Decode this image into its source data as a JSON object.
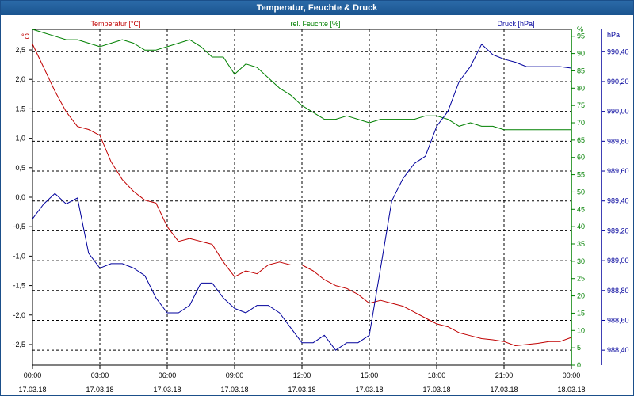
{
  "window": {
    "title": "Temperatur, Feuchte & Druck"
  },
  "colors": {
    "temperature": "#c00000",
    "humidity": "#008000",
    "pressure": "#00009c",
    "grid": "#000000"
  },
  "chart_data": {
    "type": "line",
    "grid": true,
    "x_ticks": [
      {
        "time": "00:00",
        "date": "17.03.18"
      },
      {
        "time": "03:00",
        "date": "17.03.18"
      },
      {
        "time": "06:00",
        "date": "17.03.18"
      },
      {
        "time": "09:00",
        "date": "17.03.18"
      },
      {
        "time": "12:00",
        "date": "17.03.18"
      },
      {
        "time": "15:00",
        "date": "17.03.18"
      },
      {
        "time": "18:00",
        "date": "17.03.18"
      },
      {
        "time": "21:00",
        "date": "17.03.18"
      },
      {
        "time": "00:00",
        "date": "18.03.18"
      }
    ],
    "x_unit": "hours",
    "x_range": [
      0,
      24
    ],
    "axes": {
      "temperature": {
        "label": "Temperatur [°C]",
        "unit": "°C",
        "range": [
          -2.85,
          2.85
        ],
        "ticks": [
          "2,5",
          "2,0",
          "1,5",
          "1,0",
          "0,5",
          "0,0",
          "-0,5",
          "-1,0",
          "-1,5",
          "-2,0",
          "-2,5"
        ],
        "tick_values": [
          2.5,
          2.0,
          1.5,
          1.0,
          0.5,
          0.0,
          -0.5,
          -1.0,
          -1.5,
          -2.0,
          -2.5
        ]
      },
      "humidity": {
        "label": "rel. Feuchte [%]",
        "unit": "%",
        "range": [
          0,
          97
        ],
        "ticks": [
          "95",
          "90",
          "85",
          "80",
          "75",
          "70",
          "65",
          "60",
          "55",
          "50",
          "45",
          "40",
          "35",
          "30",
          "25",
          "20",
          "15",
          "10",
          "5",
          "0"
        ],
        "tick_values": [
          95,
          90,
          85,
          80,
          75,
          70,
          65,
          60,
          55,
          50,
          45,
          40,
          35,
          30,
          25,
          20,
          15,
          10,
          5,
          0
        ]
      },
      "pressure": {
        "label": "Druck [hPa]",
        "unit": "hPa",
        "range": [
          988.3,
          990.55
        ],
        "ticks": [
          "990,40",
          "990,20",
          "990,00",
          "989,80",
          "989,60",
          "989,40",
          "989,20",
          "989,00",
          "988,80",
          "988,60",
          "988,40"
        ],
        "tick_values": [
          990.4,
          990.2,
          990.0,
          989.8,
          989.6,
          989.4,
          989.2,
          989.0,
          988.8,
          988.6,
          988.4
        ]
      }
    },
    "series": [
      {
        "name": "Temperatur [°C]",
        "axis": "temperature",
        "x": [
          0,
          0.5,
          1,
          1.5,
          2,
          2.5,
          3,
          3.5,
          4,
          4.5,
          5,
          5.5,
          6,
          6.5,
          7,
          7.5,
          8,
          8.5,
          9,
          9.5,
          10,
          10.5,
          11,
          11.5,
          12,
          12.5,
          13,
          13.5,
          14,
          14.5,
          15,
          15.5,
          16,
          16.5,
          17,
          17.5,
          18,
          18.5,
          19,
          19.5,
          20,
          20.5,
          21,
          21.5,
          22,
          22.5,
          23,
          23.5,
          24
        ],
        "y": [
          2.6,
          2.2,
          1.8,
          1.45,
          1.2,
          1.15,
          1.05,
          0.6,
          0.3,
          0.1,
          -0.05,
          -0.1,
          -0.5,
          -0.75,
          -0.7,
          -0.75,
          -0.8,
          -1.1,
          -1.35,
          -1.25,
          -1.3,
          -1.15,
          -1.1,
          -1.15,
          -1.15,
          -1.25,
          -1.4,
          -1.5,
          -1.55,
          -1.65,
          -1.8,
          -1.75,
          -1.8,
          -1.85,
          -1.95,
          -2.05,
          -2.15,
          -2.2,
          -2.3,
          -2.35,
          -2.4,
          -2.42,
          -2.45,
          -2.52,
          -2.5,
          -2.48,
          -2.45,
          -2.45,
          -2.38
        ]
      },
      {
        "name": "rel. Feuchte [%]",
        "axis": "humidity",
        "x": [
          0,
          0.5,
          1,
          1.5,
          2,
          2.5,
          3,
          3.5,
          4,
          4.5,
          5,
          5.5,
          6,
          6.5,
          7,
          7.5,
          8,
          8.5,
          9,
          9.5,
          10,
          10.5,
          11,
          11.5,
          12,
          12.5,
          13,
          13.5,
          14,
          14.5,
          15,
          15.5,
          16,
          16.5,
          17,
          17.5,
          18,
          18.5,
          19,
          19.5,
          20,
          20.5,
          21,
          21.5,
          22,
          22.5,
          23,
          23.5,
          24
        ],
        "y": [
          97,
          96,
          95,
          94,
          94,
          93,
          92,
          93,
          94,
          93,
          91,
          91,
          92,
          93,
          94,
          92,
          89,
          89,
          84,
          87,
          86,
          83,
          80,
          78,
          75,
          73,
          71,
          71,
          72,
          71,
          70,
          71,
          71,
          71,
          71,
          72,
          72,
          71,
          69,
          70,
          69,
          69,
          68,
          68,
          68,
          68,
          68,
          68,
          68
        ]
      },
      {
        "name": "Druck [hPa]",
        "axis": "pressure",
        "x": [
          0,
          0.5,
          1,
          1.5,
          2,
          2.5,
          3,
          3.5,
          4,
          4.5,
          5,
          5.5,
          6,
          6.5,
          7,
          7.5,
          8,
          8.5,
          9,
          9.5,
          10,
          10.5,
          11,
          11.5,
          12,
          12.5,
          13,
          13.5,
          14,
          14.5,
          15,
          15.5,
          16,
          16.5,
          17,
          17.5,
          18,
          18.5,
          19,
          19.5,
          20,
          20.5,
          21,
          21.5,
          22,
          22.5,
          23,
          23.5,
          24
        ],
        "y": [
          989.28,
          989.38,
          989.45,
          989.38,
          989.42,
          989.05,
          988.95,
          988.98,
          988.98,
          988.95,
          988.9,
          988.75,
          988.65,
          988.65,
          988.7,
          988.85,
          988.85,
          988.75,
          988.68,
          988.65,
          988.7,
          988.7,
          988.65,
          988.55,
          988.45,
          988.45,
          988.5,
          988.4,
          988.45,
          988.45,
          988.5,
          988.95,
          989.4,
          989.55,
          989.65,
          989.7,
          989.9,
          990.0,
          990.2,
          990.3,
          990.45,
          990.38,
          990.35,
          990.33,
          990.3,
          990.3,
          990.3,
          990.3,
          990.29
        ]
      }
    ]
  }
}
